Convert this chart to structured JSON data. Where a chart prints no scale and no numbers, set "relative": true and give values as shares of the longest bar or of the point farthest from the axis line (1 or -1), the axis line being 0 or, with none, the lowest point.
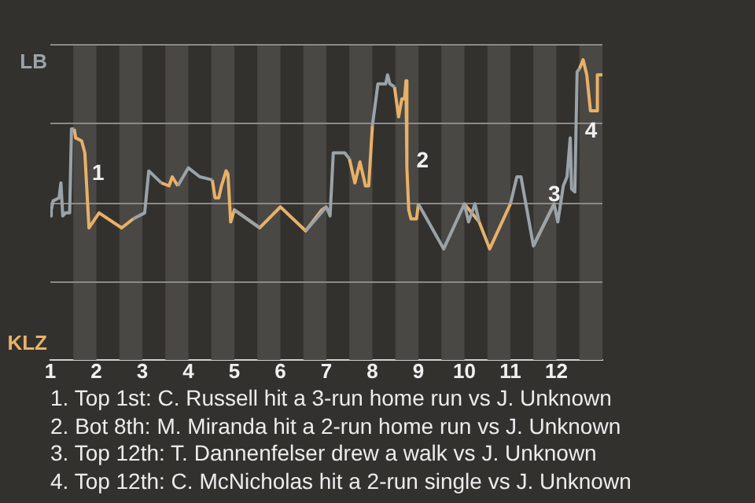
{
  "chart_data": {
    "type": "line",
    "relative": true,
    "xlim": [
      1,
      13
    ],
    "xticks": [
      1,
      2,
      3,
      4,
      5,
      6,
      7,
      8,
      9,
      10,
      11,
      12
    ],
    "grid": "y",
    "marker": "none",
    "line_style": "solid",
    "series": [
      {
        "name": "LB",
        "color": "#9aa3a8",
        "x": [
          1.0,
          1.02,
          1.06,
          1.19,
          1.23,
          1.27,
          1.33,
          1.42,
          1.46,
          1.52,
          1.55,
          2.8,
          3.05,
          3.14,
          3.41,
          3.58,
          3.77,
          4.0,
          4.25,
          4.52,
          4.58,
          5.0,
          5.55,
          6.0,
          6.55,
          7.0,
          7.08,
          7.15,
          7.28,
          7.4,
          7.5,
          7.62,
          8.0,
          8.12,
          8.29,
          8.33,
          8.38,
          8.48,
          8.57,
          9.0,
          9.55,
          10.0,
          10.09,
          10.23,
          10.32,
          10.55,
          11.0,
          11.14,
          11.23,
          11.5,
          11.95,
          12.03,
          12.15,
          12.23,
          12.3,
          12.33,
          12.4,
          12.45,
          12.5
        ],
        "values": [
          0.48,
          0.5,
          0.53,
          0.54,
          0.59,
          0.48,
          0.49,
          0.49,
          0.77,
          0.77,
          null,
          0.47,
          0.49,
          0.63,
          0.59,
          null,
          0.58,
          0.64,
          0.61,
          0.6,
          null,
          0.5,
          0.44,
          null,
          0.43,
          0.51,
          0.48,
          0.69,
          0.69,
          0.69,
          0.67,
          null,
          0.78,
          0.92,
          0.92,
          0.95,
          0.92,
          0.91,
          null,
          0.52,
          0.37,
          0.52,
          0.46,
          0.52,
          0.46,
          null,
          0.52,
          0.61,
          0.61,
          0.38,
          0.52,
          0.46,
          0.58,
          0.61,
          0.74,
          0.57,
          0.56,
          0.96,
          0.97
        ]
      },
      {
        "name": "KLZ",
        "color": "#e8b168",
        "x": [
          1.52,
          1.55,
          1.68,
          1.75,
          1.84,
          2.06,
          2.55,
          2.8,
          3.05,
          3.41,
          3.58,
          3.65,
          3.77,
          4.0,
          4.52,
          4.58,
          4.66,
          4.72,
          4.82,
          4.86,
          4.92,
          5.0,
          5.55,
          6.0,
          6.55,
          6.9,
          7.0,
          7.08,
          7.5,
          7.62,
          7.73,
          7.85,
          7.92,
          8.0,
          8.12,
          8.48,
          8.57,
          8.64,
          8.7,
          8.73,
          8.75,
          8.79,
          8.84,
          8.96,
          9.0,
          9.55,
          10.0,
          10.32,
          10.55,
          11.0,
          11.23,
          11.5,
          11.95,
          12.45,
          12.5,
          12.58,
          12.66,
          12.74,
          12.87,
          12.89,
          13.0
        ],
        "values": [
          0.77,
          0.74,
          0.73,
          0.69,
          0.44,
          0.49,
          0.44,
          0.47,
          null,
          0.59,
          0.58,
          0.61,
          0.58,
          null,
          0.6,
          0.54,
          0.54,
          0.58,
          0.63,
          0.62,
          0.46,
          0.5,
          0.44,
          0.51,
          0.43,
          0.5,
          0.51,
          null,
          0.67,
          0.59,
          0.66,
          0.58,
          0.58,
          0.78,
          null,
          0.91,
          0.81,
          0.87,
          0.87,
          0.93,
          0.64,
          0.5,
          0.47,
          0.47,
          0.52,
          null,
          0.52,
          0.46,
          0.37,
          0.52,
          null,
          0.38,
          0.52,
          null,
          0.97,
          1,
          0.95,
          0.83,
          0.83,
          0.95,
          0.95
        ]
      }
    ],
    "annotations": [
      {
        "text": "1",
        "x": 1.46,
        "y": 0.6
      },
      {
        "text": "2",
        "x": 8.75,
        "y": 0.64
      },
      {
        "text": "3",
        "x": 12.4,
        "y": 0.56
      },
      {
        "text": "4",
        "x": 12.45,
        "y": 0.74
      },
      "1. Top 1st: C. Russell hit a 3-run home run vs J. Unknown",
      "2. Bot 8th: M. Miranda hit a 2-run home run vs J. Unknown",
      "3. Top 12th: T. Dannenfelser drew a walk vs J. Unknown",
      "4. Top 12th: C. McNicholas hit a 2-run single vs J. Unknown"
    ],
    "bands": [
      {
        "axis": "x",
        "from": 1.5,
        "to": 2
      },
      {
        "axis": "x",
        "from": 2.5,
        "to": 3
      },
      {
        "axis": "x",
        "from": 3.5,
        "to": 4
      },
      {
        "axis": "x",
        "from": 4.5,
        "to": 5
      },
      {
        "axis": "x",
        "from": 5.5,
        "to": 6
      },
      {
        "axis": "x",
        "from": 6.5,
        "to": 7
      },
      {
        "axis": "x",
        "from": 7.5,
        "to": 8
      },
      {
        "axis": "x",
        "from": 8.5,
        "to": 9
      },
      {
        "axis": "x",
        "from": 9.5,
        "to": 10
      },
      {
        "axis": "x",
        "from": 10.5,
        "to": 11
      },
      {
        "axis": "x",
        "from": 11.5,
        "to": 12
      },
      {
        "axis": "x",
        "from": 12.5,
        "to": 13
      }
    ]
  }
}
